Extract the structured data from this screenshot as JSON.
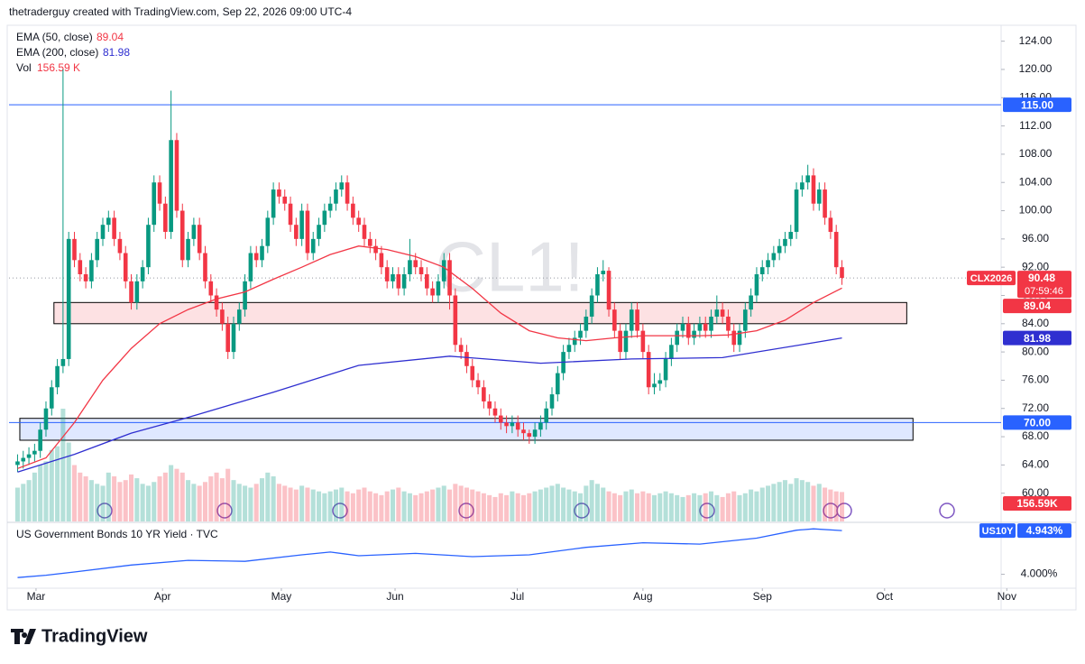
{
  "header": {
    "attribution": "thetraderguy created with TradingView.com, Sep 22, 2026 09:00 UTC-4"
  },
  "footer": {
    "brand": "TradingView"
  },
  "chart_data": {
    "type": "candlestick",
    "watermark": "CL1!",
    "symbol": "CLX2026",
    "countdown": "07:59:46",
    "up_color": "#089981",
    "down_color": "#f23645",
    "grid": false,
    "xlim": [
      -1.5,
      173
    ],
    "ylim": [
      56,
      126
    ],
    "xticks": [
      {
        "value": 3.25,
        "label": "Mar"
      },
      {
        "value": 25.5,
        "label": "Apr"
      },
      {
        "value": 46.4,
        "label": "May"
      },
      {
        "value": 66.4,
        "label": "Jun"
      },
      {
        "value": 87.9,
        "label": "Jul"
      },
      {
        "value": 110,
        "label": "Aug"
      },
      {
        "value": 131,
        "label": "Sep"
      },
      {
        "value": 152.5,
        "label": "Oct"
      },
      {
        "value": 174,
        "label": "Nov"
      }
    ],
    "yticks": [
      {
        "value": 60,
        "label": "60.00"
      },
      {
        "value": 64,
        "label": "64.00"
      },
      {
        "value": 68,
        "label": "68.00"
      },
      {
        "value": 72,
        "label": "72.00"
      },
      {
        "value": 76,
        "label": "76.00"
      },
      {
        "value": 80,
        "label": "80.00"
      },
      {
        "value": 84,
        "label": "84.00"
      },
      {
        "value": 88,
        "label": "88.00"
      },
      {
        "value": 92,
        "label": "92.00"
      },
      {
        "value": 96,
        "label": "96.00"
      },
      {
        "value": 100,
        "label": "100.00"
      },
      {
        "value": 104,
        "label": "104.00"
      },
      {
        "value": 108,
        "label": "108.00"
      },
      {
        "value": 112,
        "label": "112.00"
      },
      {
        "value": 116,
        "label": "116.00"
      },
      {
        "value": 120,
        "label": "120.00"
      },
      {
        "value": 124,
        "label": "124.00"
      }
    ],
    "candles": [
      [
        64,
        65.5,
        63,
        64.5
      ],
      [
        64.5,
        66,
        63.5,
        65
      ],
      [
        65,
        66.5,
        64,
        65.5
      ],
      [
        65.5,
        67,
        64.5,
        66
      ],
      [
        66,
        70,
        65,
        69
      ],
      [
        69,
        73,
        68,
        72
      ],
      [
        72,
        76,
        71,
        75
      ],
      [
        75,
        79,
        74,
        78
      ],
      [
        78,
        120,
        77,
        79
      ],
      [
        79,
        97,
        78,
        96
      ],
      [
        96,
        97,
        92,
        93
      ],
      [
        93,
        94,
        90,
        91
      ],
      [
        91,
        92,
        89,
        90
      ],
      [
        90,
        94,
        89,
        93
      ],
      [
        93,
        97,
        92,
        96
      ],
      [
        96,
        99,
        95,
        98
      ],
      [
        98,
        100,
        97,
        99
      ],
      [
        99,
        100,
        95,
        96
      ],
      [
        96,
        97,
        93,
        94
      ],
      [
        94,
        95,
        89,
        90
      ],
      [
        90,
        91,
        86,
        87
      ],
      [
        87,
        91,
        86,
        90
      ],
      [
        90,
        93,
        89,
        92
      ],
      [
        92,
        99,
        91,
        98
      ],
      [
        98,
        105,
        97,
        104
      ],
      [
        104,
        105,
        100,
        101
      ],
      [
        101,
        102,
        96,
        97
      ],
      [
        97,
        117,
        96,
        110
      ],
      [
        110,
        111,
        99,
        100
      ],
      [
        100,
        101,
        92,
        93
      ],
      [
        93,
        97,
        92,
        96
      ],
      [
        96,
        99,
        95,
        98
      ],
      [
        98,
        99,
        93,
        94
      ],
      [
        94,
        95,
        89,
        90
      ],
      [
        90,
        91,
        87,
        88
      ],
      [
        88,
        89,
        85,
        86
      ],
      [
        86,
        87,
        83,
        84
      ],
      [
        84,
        85,
        79,
        80
      ],
      [
        80,
        85,
        79,
        84
      ],
      [
        84,
        87,
        83,
        86
      ],
      [
        86,
        91,
        85,
        90
      ],
      [
        90,
        95,
        89,
        94
      ],
      [
        94,
        95,
        92,
        93
      ],
      [
        93,
        96,
        92,
        95
      ],
      [
        95,
        100,
        94,
        99
      ],
      [
        99,
        104,
        98,
        103
      ],
      [
        103,
        104,
        101,
        102
      ],
      [
        102,
        103,
        100,
        101
      ],
      [
        101,
        102,
        97,
        98
      ],
      [
        98,
        99,
        95,
        96
      ],
      [
        96,
        101,
        95,
        100
      ],
      [
        100,
        101,
        93,
        94
      ],
      [
        94,
        97,
        93,
        96
      ],
      [
        96,
        99,
        95,
        98
      ],
      [
        98,
        101,
        97,
        100
      ],
      [
        100,
        102,
        99,
        101
      ],
      [
        101,
        104,
        100,
        103
      ],
      [
        103,
        105,
        102,
        104
      ],
      [
        104,
        105,
        100,
        101
      ],
      [
        101,
        102,
        98,
        99
      ],
      [
        99,
        100,
        97,
        98
      ],
      [
        98,
        99,
        95,
        96
      ],
      [
        96,
        97,
        94,
        95
      ],
      [
        95,
        96,
        93,
        94
      ],
      [
        94,
        95,
        91,
        92
      ],
      [
        92,
        93,
        89,
        90
      ],
      [
        90,
        92,
        89,
        91
      ],
      [
        91,
        92,
        88,
        89
      ],
      [
        89,
        92,
        88,
        91
      ],
      [
        91,
        96,
        90,
        93
      ],
      [
        93,
        94,
        91,
        92
      ],
      [
        92,
        93,
        90,
        91
      ],
      [
        91,
        92,
        88,
        89
      ],
      [
        89,
        90,
        87,
        88
      ],
      [
        88,
        91,
        87,
        90
      ],
      [
        90,
        94,
        89,
        93
      ],
      [
        93,
        94,
        86,
        88
      ],
      [
        88,
        89,
        80,
        81
      ],
      [
        81,
        82,
        79,
        80
      ],
      [
        80,
        81,
        77,
        78
      ],
      [
        78,
        79,
        75,
        76
      ],
      [
        76,
        77,
        74,
        75
      ],
      [
        75,
        76,
        72,
        73
      ],
      [
        73,
        74,
        71,
        72
      ],
      [
        72,
        73,
        70,
        71
      ],
      [
        71,
        72,
        69,
        70
      ],
      [
        70,
        71,
        68.5,
        69.5
      ],
      [
        69.5,
        71,
        68.5,
        70
      ],
      [
        70,
        71,
        68,
        69
      ],
      [
        69,
        70,
        67.5,
        68.5
      ],
      [
        68.5,
        69,
        67,
        68
      ],
      [
        68,
        70,
        67,
        69
      ],
      [
        69,
        71,
        68,
        70
      ],
      [
        70,
        73,
        69,
        72
      ],
      [
        72,
        75,
        71,
        74
      ],
      [
        74,
        78,
        73,
        77
      ],
      [
        77,
        81,
        76,
        80
      ],
      [
        80,
        82,
        79,
        81
      ],
      [
        81,
        83,
        80,
        82
      ],
      [
        82,
        84,
        81,
        83
      ],
      [
        83,
        86,
        82,
        85
      ],
      [
        85,
        89,
        84,
        88
      ],
      [
        88,
        92,
        87,
        91
      ],
      [
        91,
        93,
        90,
        91.5
      ],
      [
        91.5,
        92,
        85,
        86
      ],
      [
        86,
        87,
        82,
        83
      ],
      [
        83,
        84,
        79,
        80
      ],
      [
        80,
        84,
        79,
        83
      ],
      [
        83,
        87,
        82,
        86
      ],
      [
        86,
        87,
        82,
        83
      ],
      [
        83,
        84,
        79,
        80
      ],
      [
        80,
        81,
        74,
        75
      ],
      [
        75,
        77,
        74,
        75.5
      ],
      [
        75.5,
        77,
        74.5,
        76
      ],
      [
        76,
        80,
        75,
        79
      ],
      [
        79,
        82,
        78,
        81
      ],
      [
        81,
        84,
        80,
        83
      ],
      [
        83,
        85,
        82,
        84
      ],
      [
        84,
        85,
        81,
        82
      ],
      [
        82,
        84,
        81,
        83
      ],
      [
        83,
        85,
        82,
        84
      ],
      [
        84,
        85,
        82,
        83
      ],
      [
        83,
        86,
        82,
        85
      ],
      [
        85,
        88,
        84,
        86
      ],
      [
        86,
        87,
        84,
        85
      ],
      [
        85,
        86,
        82,
        83
      ],
      [
        83,
        84,
        80,
        81
      ],
      [
        81,
        84,
        80,
        83
      ],
      [
        83,
        87,
        82,
        86
      ],
      [
        86,
        89,
        85,
        88
      ],
      [
        88,
        92,
        87,
        91
      ],
      [
        91,
        93,
        90,
        92
      ],
      [
        92,
        94,
        91,
        93
      ],
      [
        93,
        95,
        92,
        94
      ],
      [
        94,
        96,
        93,
        95
      ],
      [
        95,
        97,
        94,
        96
      ],
      [
        96,
        98,
        95,
        97
      ],
      [
        97,
        104,
        96,
        103
      ],
      [
        103,
        105,
        102,
        104
      ],
      [
        104,
        106.5,
        103,
        105
      ],
      [
        105,
        106,
        100,
        101
      ],
      [
        101,
        104,
        100,
        103
      ],
      [
        103,
        104,
        98,
        99
      ],
      [
        99,
        100,
        96,
        97
      ],
      [
        97,
        98,
        91,
        92
      ],
      [
        92,
        93,
        89.5,
        90.48
      ]
    ],
    "volume": {
      "name": "Vol",
      "legend_label": "156.59 K",
      "last_label": "156.59K",
      "vlim": [
        0,
        600
      ],
      "values": [
        180,
        200,
        220,
        260,
        300,
        320,
        380,
        400,
        600,
        420,
        300,
        260,
        240,
        220,
        200,
        190,
        260,
        240,
        210,
        220,
        250,
        230,
        200,
        190,
        210,
        240,
        260,
        300,
        280,
        260,
        220,
        200,
        190,
        210,
        240,
        260,
        230,
        280,
        220,
        200,
        190,
        180,
        200,
        230,
        260,
        240,
        200,
        190,
        180,
        170,
        190,
        180,
        170,
        160,
        150,
        160,
        170,
        180,
        160,
        150,
        170,
        180,
        160,
        150,
        140,
        160,
        170,
        180,
        160,
        150,
        140,
        150,
        160,
        170,
        180,
        190,
        170,
        200,
        190,
        180,
        170,
        160,
        150,
        140,
        130,
        150,
        140,
        160,
        150,
        140,
        150,
        160,
        170,
        180,
        190,
        200,
        180,
        170,
        160,
        150,
        190,
        220,
        200,
        180,
        160,
        150,
        140,
        160,
        170,
        150,
        160,
        150,
        140,
        150,
        160,
        150,
        140,
        130,
        140,
        150,
        140,
        150,
        160,
        140,
        130,
        150,
        160,
        140,
        150,
        170,
        160,
        180,
        190,
        200,
        210,
        220,
        200,
        230,
        220,
        210,
        190,
        200,
        180,
        170,
        160,
        156.59
      ]
    },
    "series": [
      {
        "name": "EMA (50, close)",
        "color": "#f23645",
        "x": [
          0,
          5,
          10,
          15,
          20,
          25,
          30,
          35,
          40,
          45,
          50,
          55,
          60,
          65,
          70,
          75,
          80,
          85,
          90,
          95,
          100,
          105,
          110,
          115,
          120,
          125,
          130,
          135,
          140,
          145
        ],
        "values": [
          63.5,
          65,
          70,
          76,
          80.5,
          84,
          86,
          87.5,
          88.5,
          90.3,
          92,
          93.8,
          95,
          94.5,
          93.5,
          92,
          89,
          85.5,
          83,
          82,
          81.6,
          82,
          82.3,
          82.3,
          82.3,
          82.4,
          83,
          84.5,
          87,
          89.04
        ]
      },
      {
        "name": "EMA (200, close)",
        "color": "#2f2fd0",
        "x": [
          0,
          10,
          20,
          29,
          45,
          60,
          76,
          92,
          108,
          124,
          140,
          145
        ],
        "values": [
          63,
          65.5,
          68.5,
          70.5,
          74.3,
          78.1,
          79.4,
          78.4,
          79,
          79.2,
          81.3,
          81.98
        ]
      }
    ],
    "hlines": [
      {
        "value": 115,
        "label": "115.00",
        "color": "#2962ff"
      },
      {
        "value": 70,
        "label": "70.00",
        "color": "#2962ff"
      }
    ],
    "zones": [
      {
        "x": [
          6.4,
          156.4
        ],
        "y": [
          84,
          87
        ],
        "color": "#f23645"
      },
      {
        "x": [
          0.4,
          157.5
        ],
        "y": [
          67.5,
          70.6
        ],
        "color": "#2962ff"
      }
    ],
    "yield": {
      "title": "US Government Bonds 10 YR Yield · TVC",
      "symbol": "US10Y",
      "last_label": "4.943%",
      "color": "#2962ff",
      "ylim": [
        3.7,
        5.1
      ],
      "yticks": [
        {
          "value": 4,
          "label": "4.000%"
        }
      ],
      "x": [
        0,
        5,
        10,
        20,
        30,
        40,
        50,
        55,
        60,
        70,
        80,
        90,
        100,
        110,
        120,
        130,
        137,
        140,
        145
      ],
      "values": [
        3.93,
        3.98,
        4.05,
        4.2,
        4.3,
        4.28,
        4.42,
        4.48,
        4.4,
        4.45,
        4.38,
        4.42,
        4.58,
        4.68,
        4.65,
        4.78,
        4.95,
        4.98,
        4.943
      ]
    }
  }
}
